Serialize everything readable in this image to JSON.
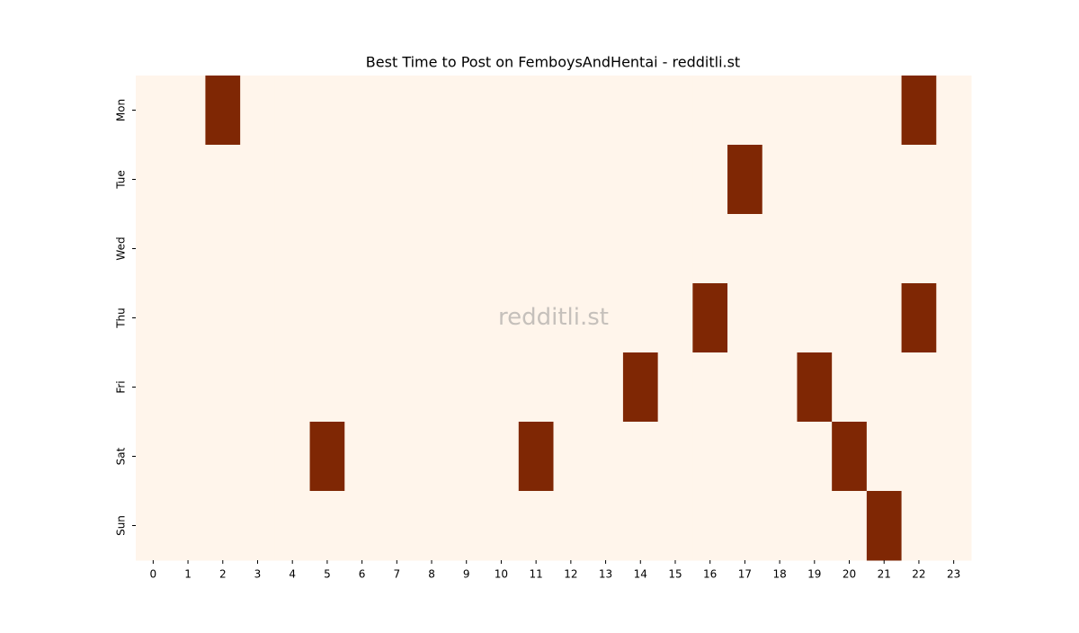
{
  "chart_data": {
    "type": "heatmap",
    "title": "Best Time to Post on FemboysAndHentai - redditli.st",
    "watermark": "redditli.st",
    "x": [
      0,
      1,
      2,
      3,
      4,
      5,
      6,
      7,
      8,
      9,
      10,
      11,
      12,
      13,
      14,
      15,
      16,
      17,
      18,
      19,
      20,
      21,
      22,
      23
    ],
    "categories": [
      "Mon",
      "Tue",
      "Wed",
      "Thu",
      "Fri",
      "Sat",
      "Sun"
    ],
    "values": [
      [
        0,
        0,
        1,
        0,
        0,
        0,
        0,
        0,
        0,
        0,
        0,
        0,
        0,
        0,
        0,
        0,
        0,
        0,
        0,
        0,
        0,
        0,
        1,
        0
      ],
      [
        0,
        0,
        0,
        0,
        0,
        0,
        0,
        0,
        0,
        0,
        0,
        0,
        0,
        0,
        0,
        0,
        0,
        1,
        0,
        0,
        0,
        0,
        0,
        0
      ],
      [
        0,
        0,
        0,
        0,
        0,
        0,
        0,
        0,
        0,
        0,
        0,
        0,
        0,
        0,
        0,
        0,
        0,
        0,
        0,
        0,
        0,
        0,
        0,
        0
      ],
      [
        0,
        0,
        0,
        0,
        0,
        0,
        0,
        0,
        0,
        0,
        0,
        0,
        0,
        0,
        0,
        0,
        1,
        0,
        0,
        0,
        0,
        0,
        1,
        0
      ],
      [
        0,
        0,
        0,
        0,
        0,
        0,
        0,
        0,
        0,
        0,
        0,
        0,
        0,
        0,
        1,
        0,
        0,
        0,
        0,
        1,
        0,
        0,
        0,
        0
      ],
      [
        0,
        0,
        0,
        0,
        0,
        1,
        0,
        0,
        0,
        0,
        0,
        1,
        0,
        0,
        0,
        0,
        0,
        0,
        0,
        0,
        1,
        0,
        0,
        0
      ],
      [
        0,
        0,
        0,
        0,
        0,
        0,
        0,
        0,
        0,
        0,
        0,
        0,
        0,
        0,
        0,
        0,
        0,
        0,
        0,
        0,
        0,
        1,
        0,
        0
      ]
    ],
    "colors": [
      "#fff5eb",
      "#7f2704"
    ]
  }
}
